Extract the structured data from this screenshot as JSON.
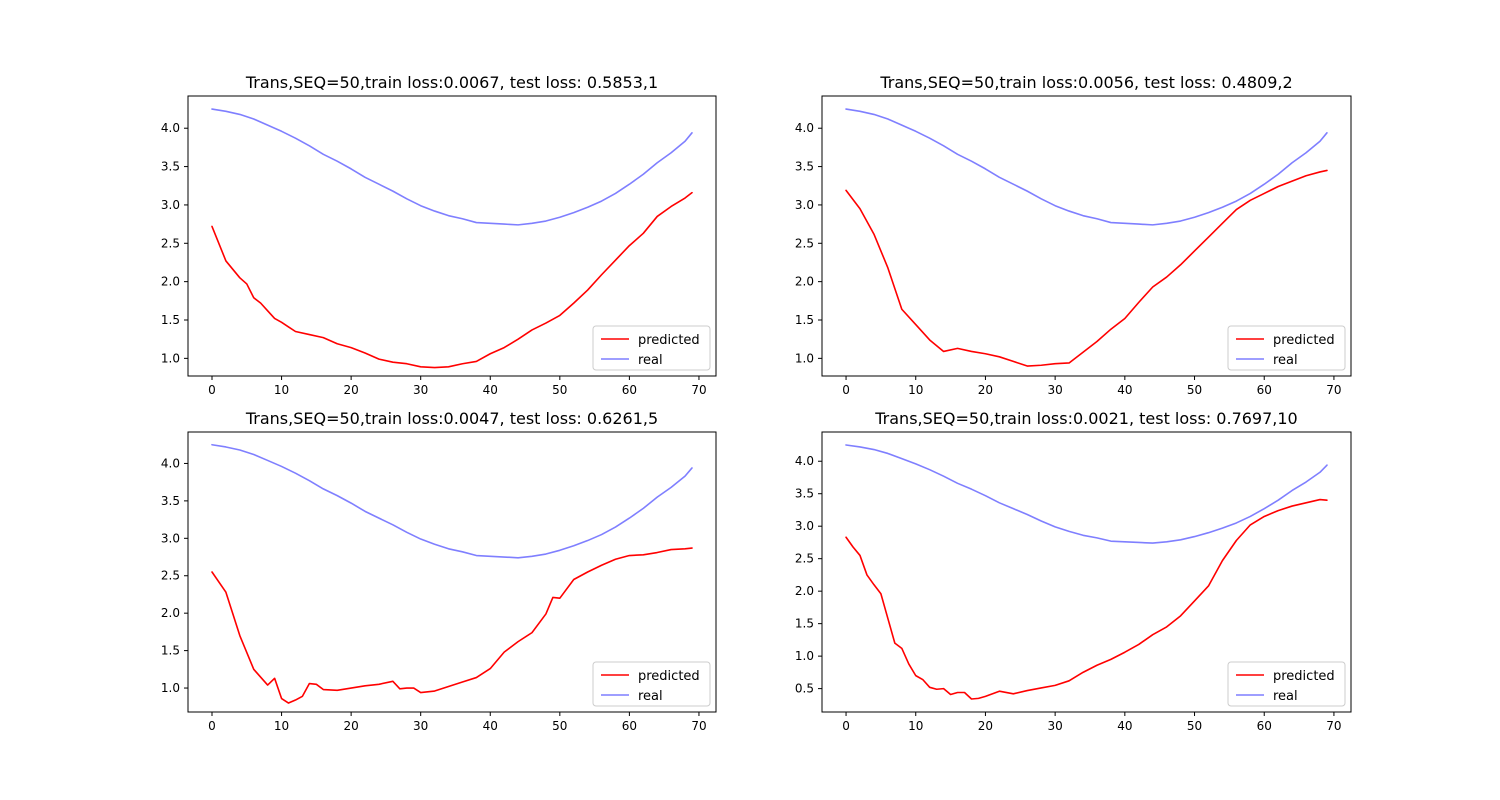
{
  "figure": {
    "background": "#ffffff"
  },
  "chart_data": [
    {
      "type": "line",
      "title": "Trans,SEQ=50,train loss:0.0067, test loss: 0.5853,1",
      "xlim": [
        -3.45,
        72.45
      ],
      "ylim": [
        0.77,
        4.42
      ],
      "xticks": [
        0,
        10,
        20,
        30,
        40,
        50,
        60,
        70
      ],
      "yticks": [
        1.0,
        1.5,
        2.0,
        2.5,
        3.0,
        3.5,
        4.0
      ],
      "legend_position": "lower-right",
      "series": [
        {
          "name": "predicted",
          "color": "#ff0000",
          "x": [
            0,
            2,
            4,
            5,
            6,
            7,
            8,
            9,
            10,
            11,
            12,
            14,
            16,
            18,
            20,
            22,
            24,
            26,
            28,
            30,
            32,
            34,
            36,
            38,
            40,
            42,
            44,
            46,
            48,
            50,
            52,
            54,
            56,
            58,
            60,
            62,
            64,
            66,
            68,
            69
          ],
          "y": [
            2.72,
            2.27,
            2.05,
            1.97,
            1.79,
            1.72,
            1.62,
            1.52,
            1.47,
            1.41,
            1.35,
            1.31,
            1.27,
            1.19,
            1.14,
            1.07,
            0.99,
            0.95,
            0.93,
            0.89,
            0.88,
            0.89,
            0.93,
            0.96,
            1.06,
            1.14,
            1.25,
            1.37,
            1.46,
            1.56,
            1.72,
            1.89,
            2.09,
            2.28,
            2.47,
            2.63,
            2.85,
            2.98,
            3.09,
            3.16
          ]
        },
        {
          "name": "real",
          "color": "#7f7fff",
          "x": [
            0,
            2,
            4,
            6,
            8,
            10,
            12,
            14,
            16,
            18,
            20,
            22,
            24,
            26,
            28,
            30,
            32,
            34,
            36,
            38,
            40,
            42,
            44,
            46,
            48,
            50,
            52,
            54,
            56,
            58,
            60,
            62,
            64,
            66,
            68,
            69
          ],
          "y": [
            4.25,
            4.22,
            4.18,
            4.12,
            4.04,
            3.96,
            3.87,
            3.77,
            3.66,
            3.57,
            3.47,
            3.36,
            3.27,
            3.18,
            3.08,
            2.99,
            2.92,
            2.86,
            2.82,
            2.77,
            2.76,
            2.75,
            2.74,
            2.76,
            2.79,
            2.84,
            2.9,
            2.97,
            3.05,
            3.15,
            3.27,
            3.4,
            3.55,
            3.68,
            3.83,
            3.94
          ]
        }
      ]
    },
    {
      "type": "line",
      "title": "Trans,SEQ=50,train loss:0.0056, test loss: 0.4809,2",
      "xlim": [
        -3.45,
        72.45
      ],
      "ylim": [
        0.77,
        4.42
      ],
      "xticks": [
        0,
        10,
        20,
        30,
        40,
        50,
        60,
        70
      ],
      "yticks": [
        1.0,
        1.5,
        2.0,
        2.5,
        3.0,
        3.5,
        4.0
      ],
      "legend_position": "lower-right",
      "series": [
        {
          "name": "predicted",
          "color": "#ff0000",
          "x": [
            0,
            2,
            4,
            6,
            8,
            10,
            12,
            14,
            16,
            18,
            20,
            22,
            24,
            26,
            28,
            30,
            32,
            34,
            36,
            38,
            40,
            42,
            44,
            46,
            48,
            50,
            52,
            54,
            56,
            58,
            60,
            62,
            64,
            66,
            68,
            69
          ],
          "y": [
            3.19,
            2.95,
            2.62,
            2.18,
            1.64,
            1.44,
            1.24,
            1.09,
            1.13,
            1.09,
            1.06,
            1.02,
            0.96,
            0.9,
            0.91,
            0.93,
            0.94,
            1.08,
            1.22,
            1.38,
            1.52,
            1.73,
            1.93,
            2.06,
            2.22,
            2.4,
            2.58,
            2.76,
            2.94,
            3.06,
            3.15,
            3.24,
            3.31,
            3.38,
            3.43,
            3.45
          ]
        },
        {
          "name": "real",
          "color": "#7f7fff",
          "x": [
            0,
            2,
            4,
            6,
            8,
            10,
            12,
            14,
            16,
            18,
            20,
            22,
            24,
            26,
            28,
            30,
            32,
            34,
            36,
            38,
            40,
            42,
            44,
            46,
            48,
            50,
            52,
            54,
            56,
            58,
            60,
            62,
            64,
            66,
            68,
            69
          ],
          "y": [
            4.25,
            4.22,
            4.18,
            4.12,
            4.04,
            3.96,
            3.87,
            3.77,
            3.66,
            3.57,
            3.47,
            3.36,
            3.27,
            3.18,
            3.08,
            2.99,
            2.92,
            2.86,
            2.82,
            2.77,
            2.76,
            2.75,
            2.74,
            2.76,
            2.79,
            2.84,
            2.9,
            2.97,
            3.05,
            3.15,
            3.27,
            3.4,
            3.55,
            3.68,
            3.83,
            3.94
          ]
        }
      ]
    },
    {
      "type": "line",
      "title": "Trans,SEQ=50,train loss:0.0047, test loss: 0.6261,5",
      "xlim": [
        -3.45,
        72.45
      ],
      "ylim": [
        0.68,
        4.42
      ],
      "xticks": [
        0,
        10,
        20,
        30,
        40,
        50,
        60,
        70
      ],
      "yticks": [
        1.0,
        1.5,
        2.0,
        2.5,
        3.0,
        3.5,
        4.0
      ],
      "legend_position": "lower-right",
      "series": [
        {
          "name": "predicted",
          "color": "#ff0000",
          "x": [
            0,
            2,
            4,
            6,
            8,
            9,
            10,
            11,
            12,
            13,
            14,
            15,
            16,
            18,
            20,
            22,
            24,
            26,
            27,
            28,
            29,
            30,
            32,
            34,
            36,
            38,
            40,
            42,
            44,
            46,
            48,
            49,
            50,
            52,
            54,
            56,
            58,
            60,
            62,
            64,
            66,
            68,
            69
          ],
          "y": [
            2.55,
            2.28,
            1.7,
            1.25,
            1.04,
            1.13,
            0.86,
            0.8,
            0.84,
            0.89,
            1.06,
            1.05,
            0.98,
            0.97,
            1.0,
            1.03,
            1.05,
            1.09,
            0.99,
            1.0,
            1.0,
            0.94,
            0.96,
            1.02,
            1.08,
            1.14,
            1.26,
            1.48,
            1.62,
            1.74,
            1.99,
            2.21,
            2.2,
            2.45,
            2.55,
            2.64,
            2.72,
            2.77,
            2.78,
            2.81,
            2.85,
            2.86,
            2.87
          ]
        },
        {
          "name": "real",
          "color": "#7f7fff",
          "x": [
            0,
            2,
            4,
            6,
            8,
            10,
            12,
            14,
            16,
            18,
            20,
            22,
            24,
            26,
            28,
            30,
            32,
            34,
            36,
            38,
            40,
            42,
            44,
            46,
            48,
            50,
            52,
            54,
            56,
            58,
            60,
            62,
            64,
            66,
            68,
            69
          ],
          "y": [
            4.25,
            4.22,
            4.18,
            4.12,
            4.04,
            3.96,
            3.87,
            3.77,
            3.66,
            3.57,
            3.47,
            3.36,
            3.27,
            3.18,
            3.08,
            2.99,
            2.92,
            2.86,
            2.82,
            2.77,
            2.76,
            2.75,
            2.74,
            2.76,
            2.79,
            2.84,
            2.9,
            2.97,
            3.05,
            3.15,
            3.27,
            3.4,
            3.55,
            3.68,
            3.83,
            3.94
          ]
        }
      ]
    },
    {
      "type": "line",
      "title": "Trans,SEQ=50,train loss:0.0021, test loss: 0.7697,10",
      "xlim": [
        -3.45,
        72.45
      ],
      "ylim": [
        0.14,
        4.45
      ],
      "xticks": [
        0,
        10,
        20,
        30,
        40,
        50,
        60,
        70
      ],
      "yticks": [
        0.5,
        1.0,
        1.5,
        2.0,
        2.5,
        3.0,
        3.5,
        4.0
      ],
      "legend_position": "lower-right",
      "series": [
        {
          "name": "predicted",
          "color": "#ff0000",
          "x": [
            0,
            1,
            2,
            3,
            4,
            5,
            6,
            7,
            8,
            9,
            10,
            11,
            12,
            13,
            14,
            15,
            16,
            17,
            18,
            19,
            20,
            22,
            24,
            26,
            28,
            30,
            32,
            34,
            36,
            38,
            40,
            42,
            44,
            46,
            48,
            50,
            52,
            54,
            56,
            58,
            60,
            62,
            64,
            66,
            68,
            69
          ],
          "y": [
            2.83,
            2.68,
            2.55,
            2.25,
            2.1,
            1.96,
            1.58,
            1.2,
            1.12,
            0.88,
            0.7,
            0.64,
            0.52,
            0.49,
            0.5,
            0.41,
            0.44,
            0.44,
            0.34,
            0.35,
            0.38,
            0.46,
            0.42,
            0.47,
            0.51,
            0.55,
            0.62,
            0.75,
            0.86,
            0.95,
            1.06,
            1.18,
            1.33,
            1.45,
            1.62,
            1.85,
            2.08,
            2.47,
            2.78,
            3.02,
            3.15,
            3.24,
            3.31,
            3.36,
            3.41,
            3.4
          ]
        },
        {
          "name": "real",
          "color": "#7f7fff",
          "x": [
            0,
            2,
            4,
            6,
            8,
            10,
            12,
            14,
            16,
            18,
            20,
            22,
            24,
            26,
            28,
            30,
            32,
            34,
            36,
            38,
            40,
            42,
            44,
            46,
            48,
            50,
            52,
            54,
            56,
            58,
            60,
            62,
            64,
            66,
            68,
            69
          ],
          "y": [
            4.25,
            4.22,
            4.18,
            4.12,
            4.04,
            3.96,
            3.87,
            3.77,
            3.66,
            3.57,
            3.47,
            3.36,
            3.27,
            3.18,
            3.08,
            2.99,
            2.92,
            2.86,
            2.82,
            2.77,
            2.76,
            2.75,
            2.74,
            2.76,
            2.79,
            2.84,
            2.9,
            2.97,
            3.05,
            3.15,
            3.27,
            3.4,
            3.55,
            3.68,
            3.83,
            3.94
          ]
        }
      ]
    }
  ]
}
